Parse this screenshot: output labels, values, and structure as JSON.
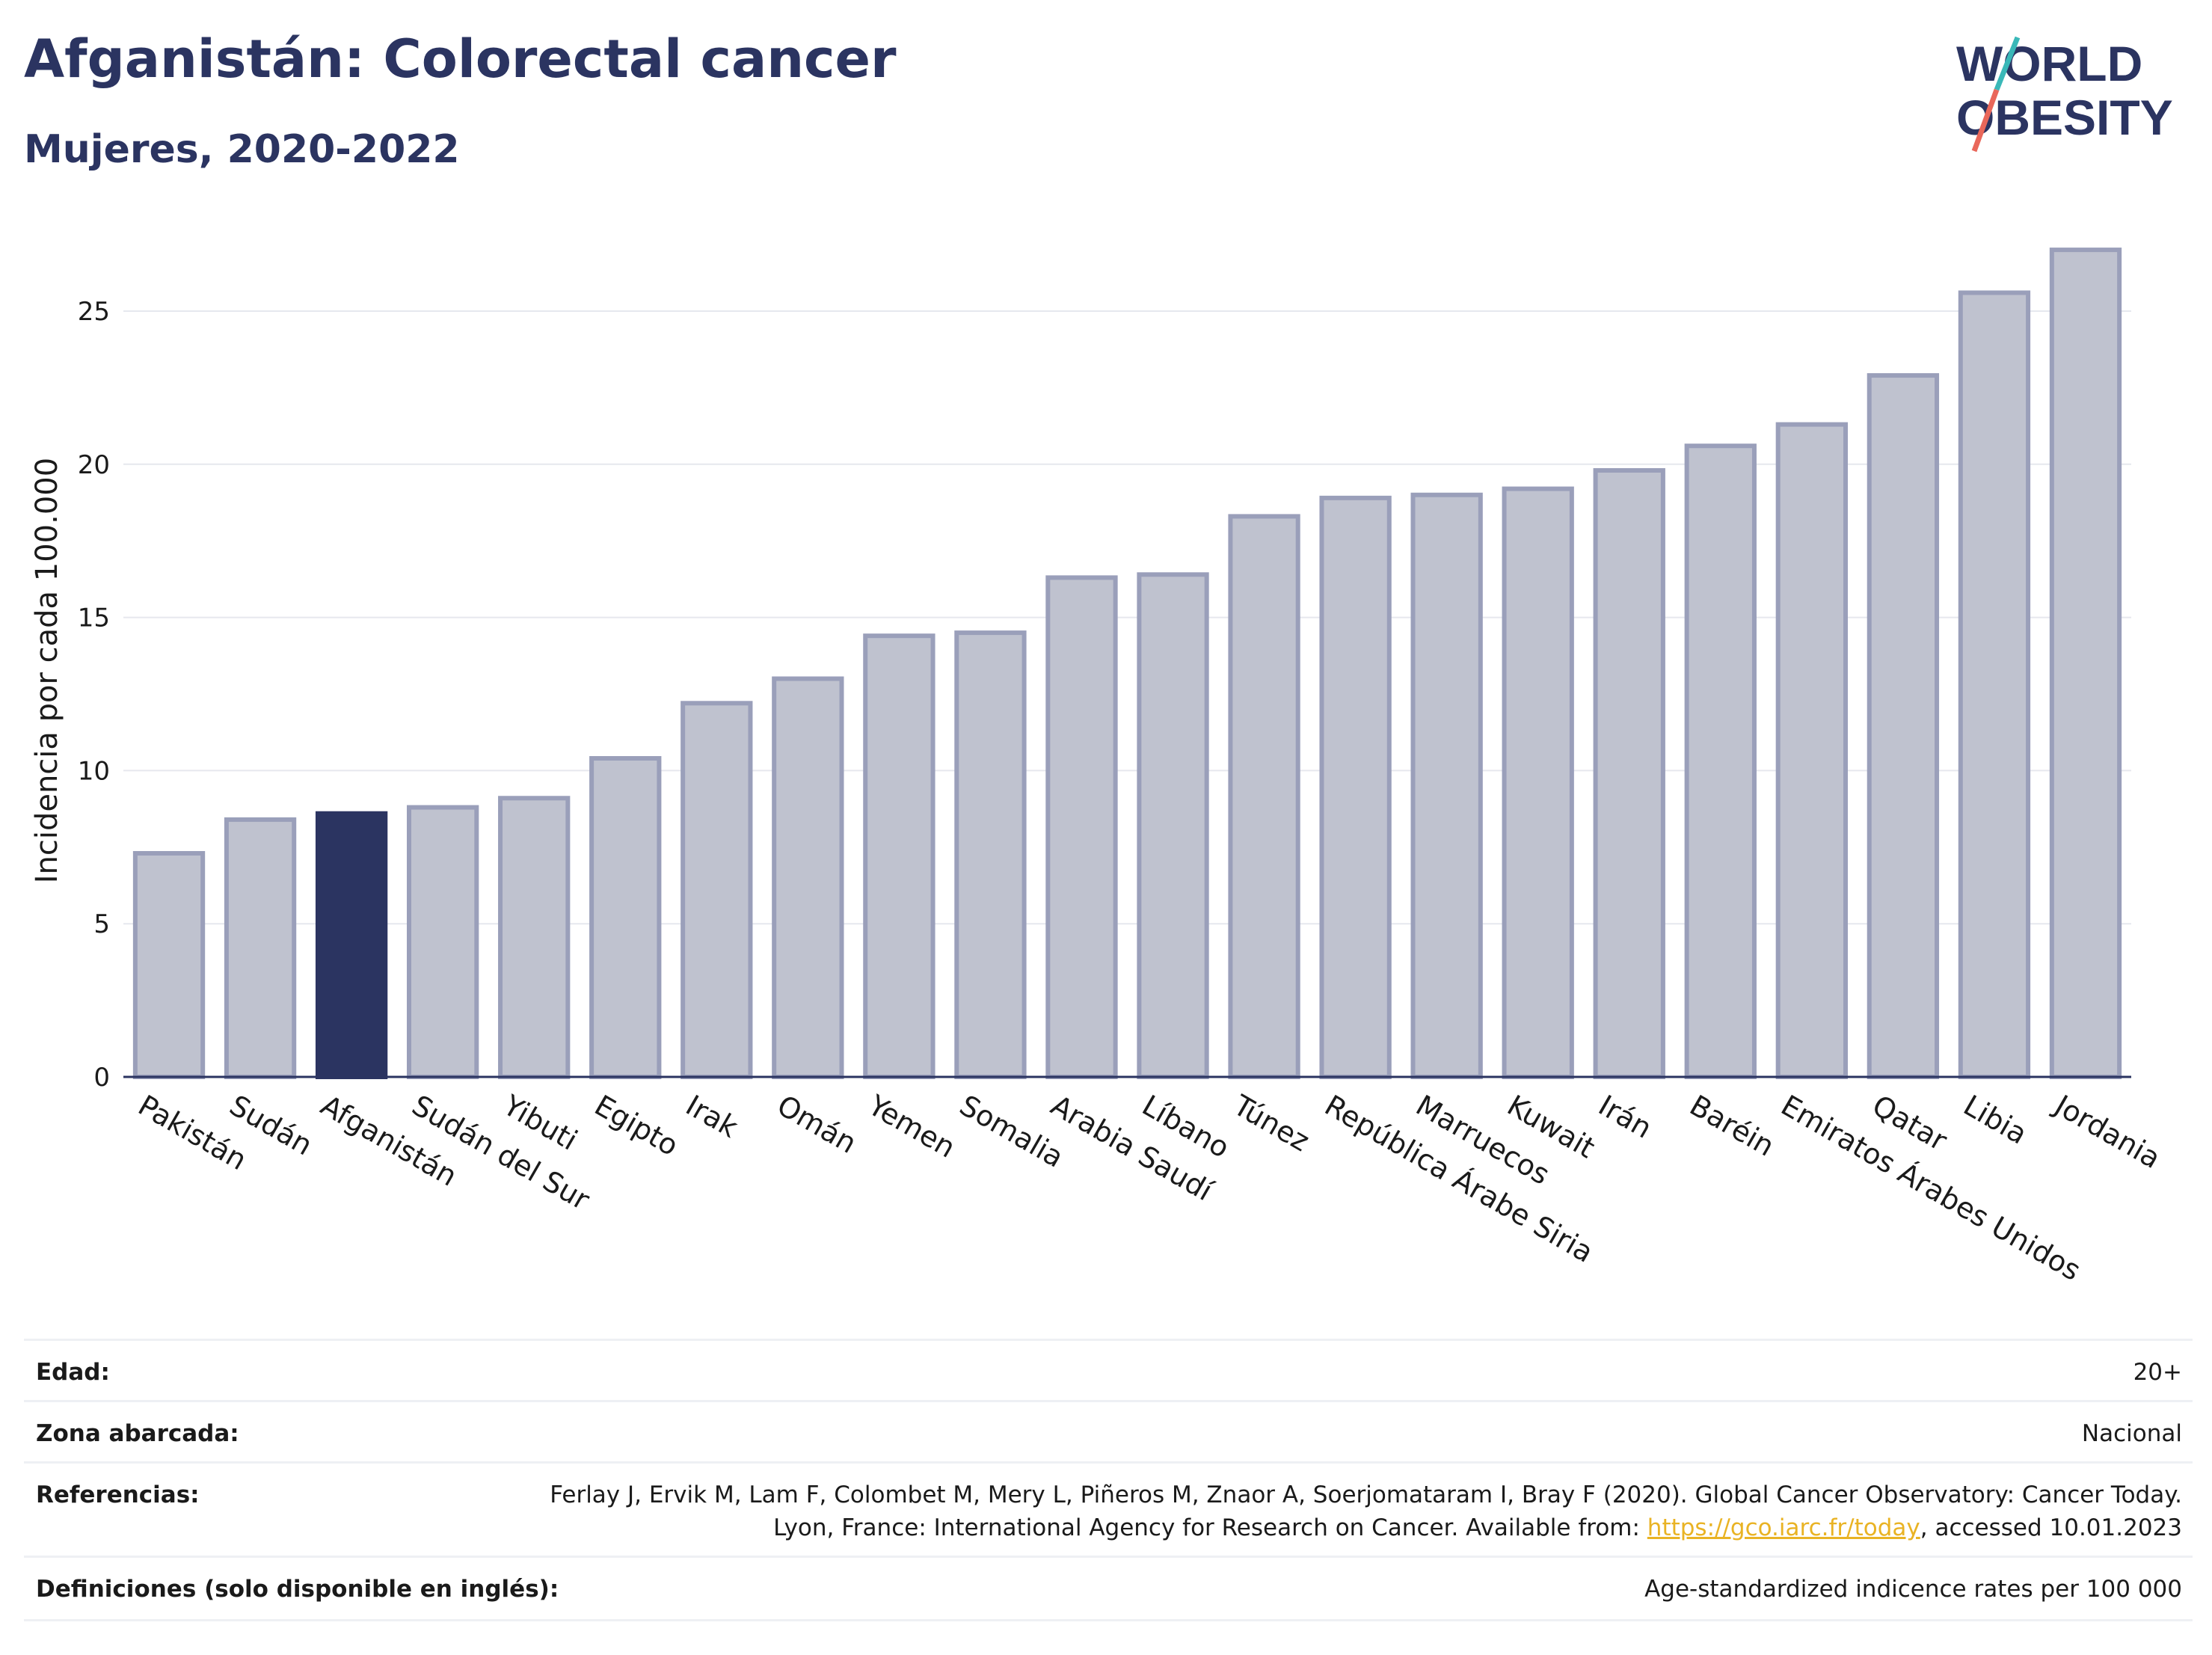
{
  "header": {
    "title": "Afganistán: Colorectal cancer",
    "subtitle": "Mujeres, 2020-2022"
  },
  "logo": {
    "line1": "WORLD",
    "line2": "OBESITY"
  },
  "chart_data": {
    "type": "bar",
    "ylabel": "Incidencia por cada 100.000",
    "ylim": [
      0,
      28
    ],
    "yticks": [
      0,
      5,
      10,
      15,
      20,
      25
    ],
    "grid": true,
    "categories": [
      "Pakistán",
      "Sudán",
      "Afganistán",
      "Sudán del Sur",
      "Yibuti",
      "Egipto",
      "Irak",
      "Omán",
      "Yemen",
      "Somalia",
      "Arabia Saudí",
      "Líbano",
      "Túnez",
      "República Árabe Siria",
      "Marruecos",
      "Kuwait",
      "Irán",
      "Baréin",
      "Emiratos Árabes Unidos",
      "Qatar",
      "Libia",
      "Jordania"
    ],
    "values": [
      7.3,
      8.4,
      8.6,
      8.8,
      9.1,
      10.4,
      12.2,
      13.0,
      14.4,
      14.5,
      16.3,
      16.4,
      18.3,
      18.9,
      19.0,
      19.2,
      19.8,
      20.6,
      21.3,
      22.9,
      25.6,
      27.0
    ],
    "highlight": "Afganistán",
    "colors": {
      "bar": "#bfc2cf",
      "bar_border": "#9a9fba",
      "highlight": "#2b3461",
      "grid": "#e6e8ee",
      "axis": "#2b3461"
    }
  },
  "meta": {
    "age_label": "Edad:",
    "age_value": "20+",
    "area_label": "Zona abarcada:",
    "area_value": "Nacional",
    "ref_label": "Referencias:",
    "ref_text": "Ferlay J, Ervik M, Lam F, Colombet M, Mery L, Piñeros M, Znaor A, Soerjomataram I, Bray F (2020). Global Cancer Observatory: Cancer Today. Lyon, France: International Agency for Research on Cancer. Available from: ",
    "ref_link": "https://gco.iarc.fr/today",
    "ref_suffix": ", accessed 10.01.2023",
    "def_label": "Definiciones (solo disponible en inglés):",
    "def_value": "Age-standardized indicence rates per 100 000"
  }
}
